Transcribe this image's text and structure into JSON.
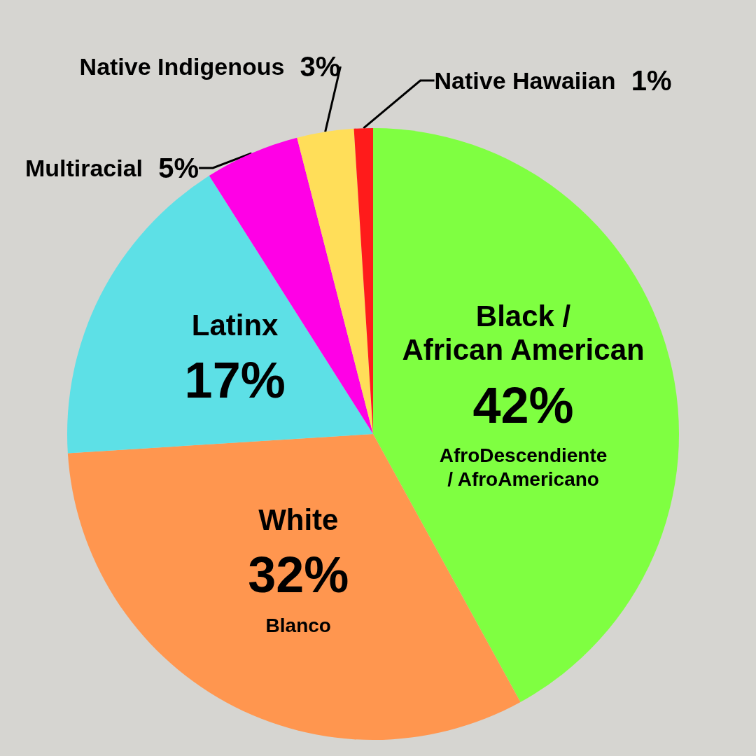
{
  "chart_data": {
    "type": "pie",
    "categories": [
      "Black / African American",
      "White",
      "Latinx",
      "Multiracial",
      "Native Indigenous",
      "Native Hawaiian"
    ],
    "values": [
      42,
      32,
      17,
      5,
      3,
      1
    ],
    "colors": [
      "#7fff41",
      "#ff964f",
      "#5de0e6",
      "#ff00e6",
      "#ffde59",
      "#ff1b1b"
    ],
    "value_labels": [
      "42%",
      "32%",
      "17%",
      "5%",
      "3%",
      "1%"
    ],
    "legend": false,
    "annotations": [
      {
        "text": "AfroDescendiente / AfroAmericano",
        "x": "Black / African American"
      },
      {
        "text": "Blanco",
        "x": "White"
      }
    ]
  }
}
